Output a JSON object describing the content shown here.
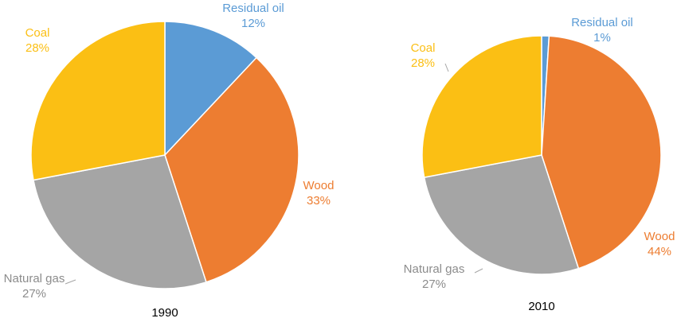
{
  "chart_data": [
    {
      "type": "pie",
      "caption": "1990",
      "slices": [
        {
          "name": "Residual oil",
          "value": 12,
          "value_label": "12%",
          "color": "#5b9bd5"
        },
        {
          "name": "Wood",
          "value": 33,
          "value_label": "33%",
          "color": "#ed7d31"
        },
        {
          "name": "Natural gas",
          "value": 27,
          "value_label": "27%",
          "color": "#a5a5a5"
        },
        {
          "name": "Coal",
          "value": 28,
          "value_label": "28%",
          "color": "#fbbf14"
        }
      ]
    },
    {
      "type": "pie",
      "caption": "2010",
      "slices": [
        {
          "name": "Residual oil",
          "value": 1,
          "value_label": "1%",
          "color": "#5b9bd5"
        },
        {
          "name": "Wood",
          "value": 44,
          "value_label": "44%",
          "color": "#ed7d31"
        },
        {
          "name": "Natural gas",
          "value": 27,
          "value_label": "27%",
          "color": "#a5a5a5"
        },
        {
          "name": "Coal",
          "value": 28,
          "value_label": "28%",
          "color": "#fbbf14"
        }
      ]
    }
  ]
}
